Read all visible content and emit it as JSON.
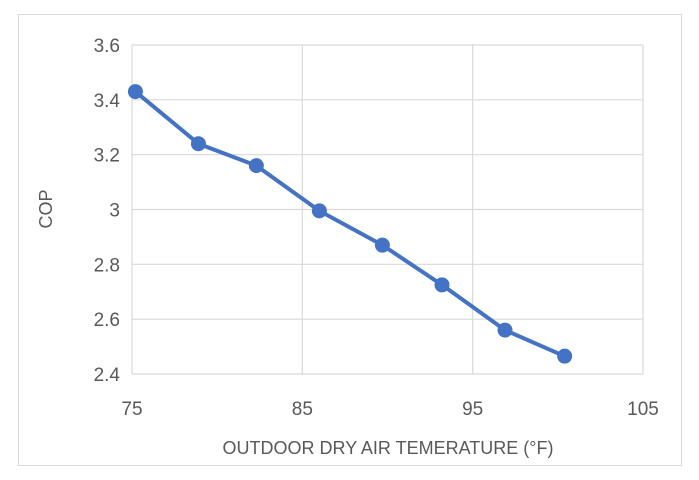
{
  "chart_data": {
    "type": "line",
    "title": "",
    "xlabel": "OUTDOOR DRY AIR TEMERATURE (°F)",
    "ylabel": "COP",
    "xlim": [
      75,
      105
    ],
    "ylim": [
      2.4,
      3.6
    ],
    "x_ticks": [
      75,
      85,
      95,
      105
    ],
    "y_ticks": [
      2.4,
      2.6,
      2.8,
      3.0,
      3.2,
      3.4,
      3.6
    ],
    "x_tick_labels": [
      "75",
      "85",
      "95",
      "105"
    ],
    "y_tick_labels": [
      "2.4",
      "2.6",
      "2.8",
      "3",
      "3.2",
      "3.4",
      "3.6"
    ],
    "grid": true,
    "legend": "none",
    "series": [
      {
        "color": "#4472c4",
        "x": [
          75.2,
          78.9,
          82.3,
          86.0,
          89.7,
          93.2,
          96.9,
          100.4
        ],
        "y": [
          3.43,
          3.24,
          3.16,
          2.995,
          2.87,
          2.725,
          2.56,
          2.465
        ]
      }
    ],
    "colors": {
      "line": "#4472c4",
      "grid": "#d9d9d9",
      "text": "#595959"
    }
  }
}
